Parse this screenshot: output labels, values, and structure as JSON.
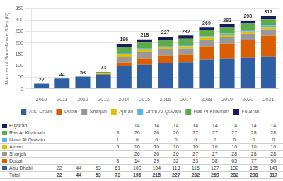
{
  "chart_data": {
    "type": "bar",
    "categories": [
      2010,
      2011,
      2012,
      2013,
      2014,
      2015,
      2016,
      2017,
      2018,
      2019,
      2020,
      2021
    ],
    "series": [
      {
        "name": "Abu Dhabi",
        "color": "#2E5FA3",
        "values": [
          22,
          44,
          53,
          61,
          100,
          104,
          113,
          115,
          127,
          132,
          135,
          141
        ]
      },
      {
        "name": "Dubai",
        "color": "#D95F02",
        "values": [
          0,
          0,
          0,
          3,
          14,
          29,
          32,
          33,
          58,
          65,
          77,
          90
        ]
      },
      {
        "name": "Sharjah",
        "color": "#999999",
        "values": [
          0,
          0,
          0,
          0,
          26,
          26,
          26,
          27,
          27,
          28,
          28,
          28
        ]
      },
      {
        "name": "Ajman",
        "color": "#E6BE00",
        "values": [
          0,
          0,
          0,
          5,
          10,
          10,
          10,
          10,
          10,
          10,
          10,
          10
        ]
      },
      {
        "name": "Umm Al Quwain",
        "color": "#56B4E9",
        "values": [
          0,
          0,
          0,
          1,
          6,
          6,
          6,
          6,
          6,
          6,
          6,
          6
        ]
      },
      {
        "name": "Ras Al Khaimah",
        "color": "#5CAD4A",
        "values": [
          0,
          0,
          0,
          3,
          26,
          26,
          26,
          27,
          27,
          27,
          28,
          28
        ]
      },
      {
        "name": "Fujairah",
        "color": "#1A1A5E",
        "values": [
          0,
          0,
          0,
          0,
          14,
          14,
          14,
          14,
          14,
          14,
          14,
          14
        ]
      }
    ],
    "stacked": true,
    "totals": [
      22,
      44,
      53,
      73,
      196,
      215,
      227,
      232,
      269,
      282,
      298,
      317
    ],
    "total_label": "Total",
    "ylabel": "Number of Surveillance Sites (N)",
    "ylim": [
      0,
      350
    ],
    "yticks": [
      0,
      50,
      100,
      150,
      200,
      250,
      300,
      350
    ],
    "grid": true,
    "legend": "bottom"
  }
}
